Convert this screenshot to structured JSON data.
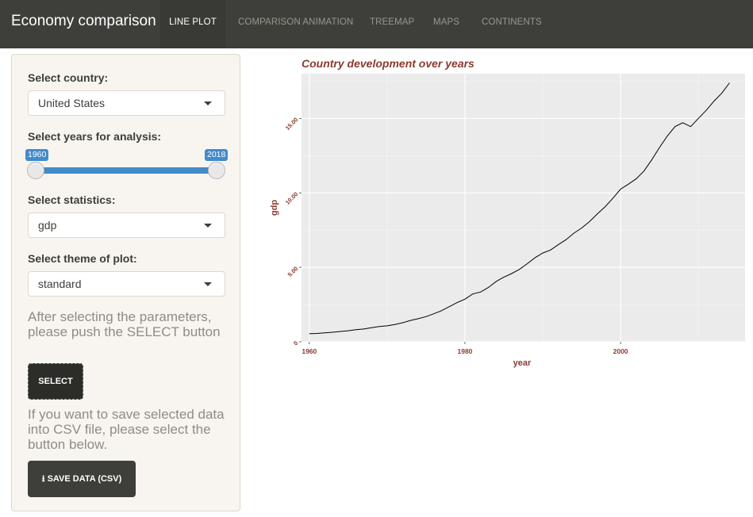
{
  "app": {
    "title": "Economy comparison"
  },
  "nav": {
    "tabs": [
      {
        "label": "LINE PLOT",
        "active": true
      },
      {
        "label": "COMPARISON ANIMATION",
        "active": false
      },
      {
        "label": "TREEMAP",
        "active": false
      },
      {
        "label": "MAPS",
        "active": false
      },
      {
        "label": "CONTINENTS",
        "active": false
      }
    ]
  },
  "sidebar": {
    "country": {
      "label": "Select country:",
      "value": "United States"
    },
    "years": {
      "label": "Select years for analysis:",
      "min": "1960",
      "max": "2018"
    },
    "statistics": {
      "label": "Select statistics:",
      "value": "gdp"
    },
    "theme": {
      "label": "Select theme of plot:",
      "value": "standard"
    },
    "help1": "After selecting the parameters, please push the SELECT button",
    "select_button": "SELECT",
    "help2": "If you want to save selected data into CSV file, please select the button below.",
    "save_button": "SAVE DATA (CSV)"
  },
  "colors": {
    "navbar": "#3e3f3a",
    "accent": "#428bca",
    "chart_text": "#8b3a2e",
    "panel_bg": "#ebebeb"
  },
  "chart_data": {
    "type": "line",
    "title": "Country development over years",
    "xlabel": "year",
    "ylabel": "gdp",
    "x_ticks": [
      "1960",
      "1980",
      "2000"
    ],
    "y_ticks": [
      "0",
      "5.00",
      "10.00",
      "15.00"
    ],
    "grid": true,
    "xlim": [
      1959,
      2016
    ],
    "ylim": [
      0,
      18.0
    ],
    "series": [
      {
        "x": [
          1960,
          1961,
          1962,
          1963,
          1964,
          1965,
          1966,
          1967,
          1968,
          1969,
          1970,
          1971,
          1972,
          1973,
          1974,
          1975,
          1976,
          1977,
          1978,
          1979,
          1980,
          1981,
          1982,
          1983,
          1984,
          1985,
          1986,
          1987,
          1988,
          1989,
          1990,
          1991,
          1992,
          1993,
          1994,
          1995,
          1996,
          1997,
          1998,
          1999,
          2000,
          2001,
          2002,
          2003,
          2004,
          2005,
          2006,
          2007,
          2008,
          2009,
          2010,
          2011,
          2012,
          2013,
          2014
        ],
        "y": [
          0.54,
          0.56,
          0.6,
          0.64,
          0.69,
          0.74,
          0.81,
          0.86,
          0.94,
          1.02,
          1.07,
          1.16,
          1.28,
          1.43,
          1.55,
          1.69,
          1.88,
          2.09,
          2.36,
          2.63,
          2.86,
          3.21,
          3.34,
          3.64,
          4.04,
          4.34,
          4.58,
          4.86,
          5.24,
          5.64,
          5.96,
          6.16,
          6.52,
          6.86,
          7.29,
          7.64,
          8.07,
          8.58,
          9.06,
          9.63,
          10.25,
          10.58,
          10.94,
          11.46,
          12.21,
          13.04,
          13.81,
          14.45,
          14.71,
          14.45,
          15.0,
          15.54,
          16.16,
          16.69,
          17.39
        ]
      }
    ]
  }
}
